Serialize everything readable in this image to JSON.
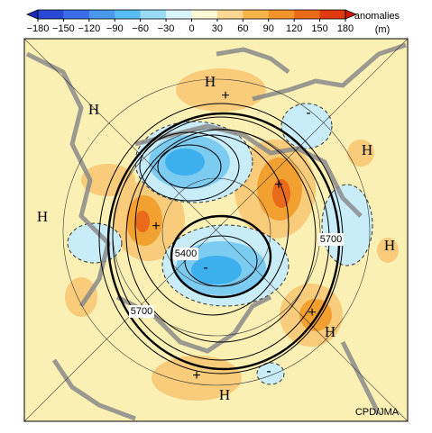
{
  "colorbar": {
    "tick_labels": [
      "−180",
      "−150",
      "−120",
      "−90",
      "−60",
      "−30",
      "0",
      "30",
      "60",
      "90",
      "120",
      "150",
      "180"
    ],
    "title": "anomalies",
    "unit": "(m)"
  },
  "high_labels": [
    "H",
    "H",
    "H",
    "H",
    "H",
    "H",
    "H"
  ],
  "contour_labels": [
    "5400",
    "5700",
    "5700"
  ],
  "anomaly_signs": [
    "+",
    "+",
    "+",
    "+",
    "+",
    "-",
    "-",
    "-"
  ],
  "credit": "CPD/JMA"
}
